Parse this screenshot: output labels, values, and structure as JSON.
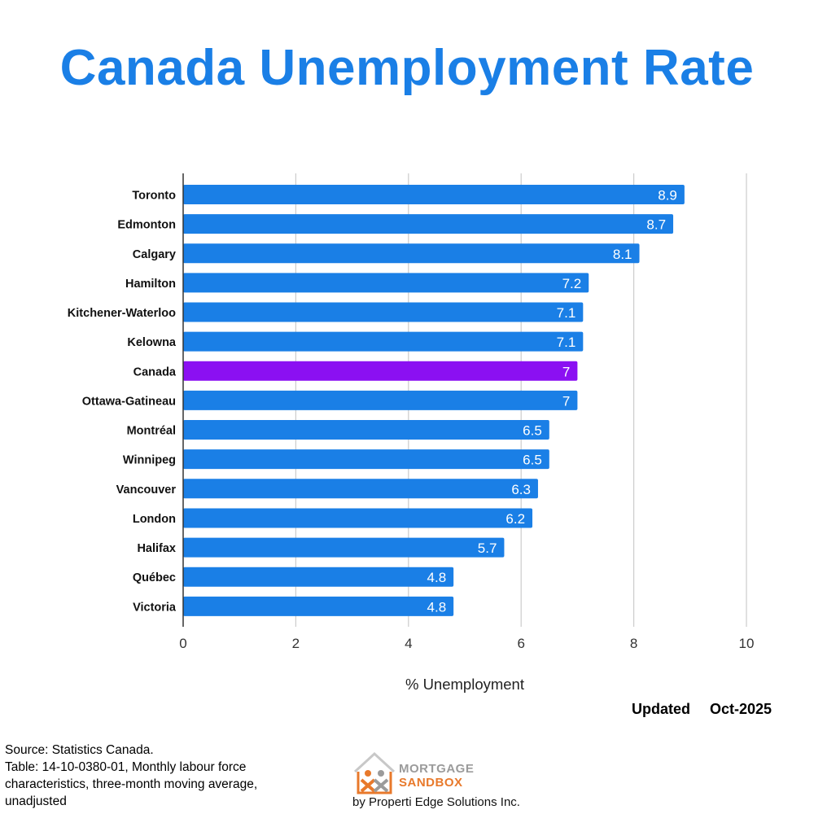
{
  "header": {
    "title": "Canada Unemployment Rate"
  },
  "chart_data": {
    "type": "bar",
    "orientation": "horizontal",
    "title": "Canada Unemployment Rate",
    "categories": [
      "Toronto",
      "Edmonton",
      "Calgary",
      "Hamilton",
      "Kitchener-Waterloo",
      "Kelowna",
      "Canada",
      "Ottawa-Gatineau",
      "Montréal",
      "Winnipeg",
      "Vancouver",
      "London",
      "Halifax",
      "Québec",
      "Victoria"
    ],
    "values": [
      8.9,
      8.7,
      8.1,
      7.2,
      7.1,
      7.1,
      7,
      7,
      6.5,
      6.5,
      6.3,
      6.2,
      5.7,
      4.8,
      4.8
    ],
    "data_labels": [
      "8.9",
      "8.7",
      "8.1",
      "7.2",
      "7.1",
      "7.1",
      "7",
      "7",
      "6.5",
      "6.5",
      "6.3",
      "6.2",
      "5.7",
      "4.8",
      "4.8"
    ],
    "highlight_category": "Canada",
    "xlabel": "% Unemployment",
    "ylabel": "",
    "xlim": [
      0,
      10
    ],
    "xticks": [
      0,
      2,
      4,
      6,
      8,
      10
    ],
    "xtick_labels": [
      "0",
      "2",
      "4",
      "6",
      "8",
      "10"
    ],
    "grid": true,
    "colors": {
      "bar": "#1a7fe6",
      "highlight": "#8b10f2",
      "grid": "#cccccc",
      "label": "#ffffff"
    }
  },
  "footer": {
    "updated_label": "Updated",
    "updated_date": "Oct-2025",
    "source_lines": [
      "Source: Statistics Canada.",
      "Table: 14-10-0380-01, Monthly labour force characteristics, three-month moving average, unadjusted"
    ],
    "logo": {
      "line1": "MORTGAGE",
      "line2": "SANDBOX",
      "tagline": "by Properti Edge Solutions Inc."
    }
  }
}
